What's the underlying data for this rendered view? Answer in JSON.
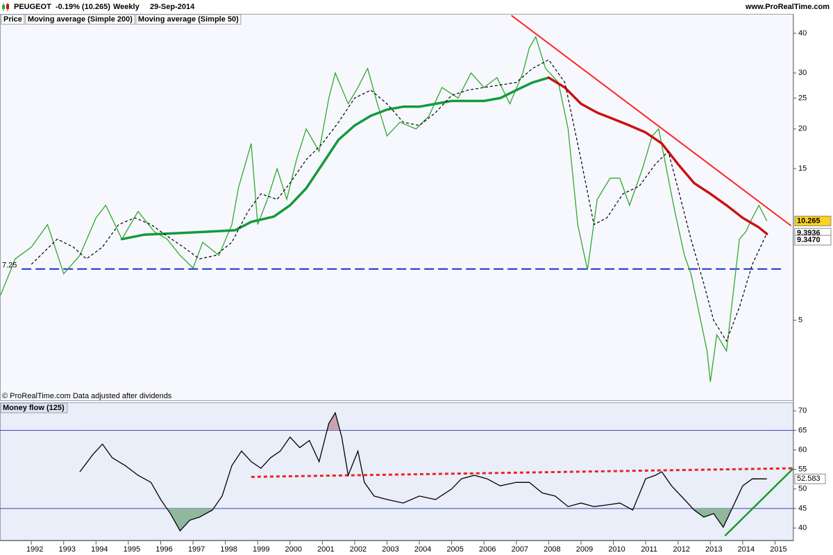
{
  "header": {
    "symbol": "PEUGEOT",
    "change": "-0.19% (10.265)",
    "period": "Weekly",
    "date": "29-Sep-2014",
    "site": "www.ProRealTime.com"
  },
  "chart_data": [
    {
      "type": "line",
      "log_scale": true,
      "xlim": [
        1991.03,
        2015.57
      ],
      "ylim": [
        2.8,
        45.8
      ],
      "yticks": [
        5,
        15,
        20,
        25,
        30,
        40
      ],
      "footnote": "© ProRealTime.com  Data adjusted after dividends",
      "series": [
        {
          "name": "Price",
          "color": "#2ea82e",
          "x": [
            1991.05,
            1991.5,
            1992.0,
            1992.5,
            1993.0,
            1993.5,
            1994.0,
            1994.3,
            1994.8,
            1995.3,
            1995.8,
            1996.2,
            1996.6,
            1997.0,
            1997.3,
            1997.8,
            1998.2,
            1998.4,
            1998.8,
            1999.0,
            1999.3,
            1999.6,
            1999.9,
            2000.2,
            2000.5,
            2000.9,
            2001.2,
            2001.4,
            2001.8,
            2002.1,
            2002.4,
            2002.7,
            2003.0,
            2003.4,
            2003.9,
            2004.3,
            2004.7,
            2005.2,
            2005.6,
            2006.0,
            2006.4,
            2006.8,
            2007.2,
            2007.4,
            2007.6,
            2007.9,
            2008.3,
            2008.6,
            2008.9,
            2009.2,
            2009.5,
            2009.9,
            2010.2,
            2010.5,
            2010.9,
            2011.2,
            2011.4,
            2011.7,
            2011.9,
            2012.2,
            2012.4,
            2012.7,
            2012.9,
            2013.0,
            2013.2,
            2013.5,
            2013.7,
            2013.9,
            2014.1,
            2014.3,
            2014.5,
            2014.75
          ],
          "values": [
            6.0,
            7.8,
            8.5,
            10,
            7.0,
            8.0,
            10.5,
            11.5,
            9.0,
            11,
            9.5,
            9,
            8,
            7.3,
            8.8,
            8.0,
            10,
            13,
            18,
            10,
            12,
            15,
            12,
            16,
            20,
            17,
            25,
            30,
            24,
            27,
            31,
            24,
            19,
            21,
            20,
            22,
            27,
            25,
            30,
            27,
            29,
            24,
            30,
            36,
            39,
            31,
            28,
            20,
            10,
            7.2,
            12,
            14,
            14,
            11.5,
            15,
            19,
            20,
            14,
            11,
            8,
            7,
            5,
            4,
            3.2,
            4.5,
            4.0,
            6,
            9,
            9.5,
            10.5,
            11.5,
            10.265
          ]
        },
        {
          "name": "Moving average (Simple 200)",
          "color": "#cc1111",
          "color_up": "#139a3c",
          "last_label": "9.3470",
          "x": [
            1994.8,
            1995.5,
            1996.5,
            1997.5,
            1998.3,
            1998.8,
            1999.5,
            2000.0,
            2000.5,
            2001.0,
            2001.5,
            2002.0,
            2002.5,
            2003.0,
            2003.5,
            2004.0,
            2004.5,
            2005.0,
            2005.5,
            2006.0,
            2006.5,
            2007.0,
            2007.5,
            2008.0,
            2008.5,
            2009.0,
            2009.5,
            2010.0,
            2010.5,
            2011.0,
            2011.5,
            2012.0,
            2012.5,
            2013.0,
            2013.5,
            2014.0,
            2014.5,
            2014.75
          ],
          "values": [
            9.0,
            9.3,
            9.4,
            9.5,
            9.6,
            10.2,
            10.6,
            11.5,
            13,
            15.5,
            18.5,
            20.5,
            22,
            23,
            23.5,
            23.5,
            24,
            24.5,
            24.5,
            24.5,
            25,
            26.5,
            28,
            29,
            27,
            24,
            22.5,
            21.5,
            20.5,
            19.5,
            18,
            15.5,
            13.5,
            12.5,
            11.5,
            10.5,
            9.8,
            9.347
          ]
        },
        {
          "name": "Moving average (Simple 50)",
          "color": "#000000",
          "dashed": true,
          "x": [
            1992.0,
            1992.8,
            1993.3,
            1993.7,
            1994.2,
            1994.7,
            1995.2,
            1995.7,
            1996.2,
            1996.7,
            1997.2,
            1997.7,
            1998.2,
            1998.7,
            1999.1,
            1999.6,
            2000.0,
            2000.5,
            2001.0,
            2001.5,
            2002.0,
            2002.5,
            2003.0,
            2003.5,
            2004.0,
            2004.5,
            2005.0,
            2005.5,
            2006.0,
            2006.5,
            2007.0,
            2007.5,
            2008.0,
            2008.5,
            2009.0,
            2009.4,
            2009.8,
            2010.3,
            2010.8,
            2011.3,
            2011.7,
            2012.0,
            2012.4,
            2012.8,
            2013.1,
            2013.5,
            2013.9,
            2014.3,
            2014.75
          ],
          "values": [
            7.5,
            9,
            8.5,
            7.8,
            8.5,
            10,
            10.5,
            10,
            9.2,
            8.5,
            7.8,
            8,
            8.8,
            11,
            12.5,
            12,
            13.5,
            16,
            18,
            21,
            25,
            26.5,
            24,
            21,
            20.5,
            22.5,
            25.5,
            26.5,
            27,
            27.5,
            28,
            31,
            33,
            28,
            16,
            10,
            10.5,
            12.5,
            13.2,
            15.5,
            17,
            13,
            9,
            6.5,
            5,
            4.3,
            5.5,
            7.5,
            9.3936
          ]
        }
      ],
      "trendline": {
        "color": "#ff2222",
        "x": [
          2006.85,
          2015.5
        ],
        "values": [
          45.5,
          9.91
        ]
      },
      "support": {
        "value": 7.25,
        "color": "#1a2ecc",
        "x": [
          1991.7,
          2015.3
        ]
      }
    },
    {
      "type": "line",
      "title": "Money flow (125)",
      "xlim": [
        1991.03,
        2015.57
      ],
      "ylim": [
        37,
        72
      ],
      "yticks": [
        40,
        45,
        50,
        55,
        60,
        65,
        70
      ],
      "xticks": [
        1992,
        1993,
        1994,
        1995,
        1996,
        1997,
        1998,
        1999,
        2000,
        2001,
        2002,
        2003,
        2004,
        2005,
        2006,
        2007,
        2008,
        2009,
        2010,
        2011,
        2012,
        2013,
        2014,
        2015
      ],
      "levels": [
        65,
        45
      ],
      "level_color": "#3344aa",
      "overbought_fill": "#c9a3b4",
      "oversold_fill": "#8fb89c",
      "series": [
        {
          "color": "#000000",
          "x": [
            1993.5,
            1993.9,
            1994.2,
            1994.5,
            1994.9,
            1995.3,
            1995.7,
            1996.0,
            1996.3,
            1996.6,
            1996.9,
            1997.2,
            1997.6,
            1997.9,
            1998.2,
            1998.5,
            1998.8,
            1999.1,
            1999.4,
            1999.7,
            2000.0,
            2000.3,
            2000.6,
            2000.9,
            2001.2,
            2001.4,
            2001.6,
            2001.8,
            2002.1,
            2002.3,
            2002.6,
            2003.0,
            2003.5,
            2004.0,
            2004.5,
            2005.0,
            2005.3,
            2005.7,
            2006.1,
            2006.5,
            2007.0,
            2007.4,
            2007.8,
            2008.2,
            2008.6,
            2009.0,
            2009.4,
            2009.8,
            2010.2,
            2010.6,
            2011.0,
            2011.3,
            2011.5,
            2011.8,
            2012.2,
            2012.5,
            2012.8,
            2013.1,
            2013.4,
            2013.7,
            2014.0,
            2014.3,
            2014.75
          ],
          "values": [
            54.4,
            58.8,
            61.5,
            58,
            56,
            53.5,
            51.7,
            47.3,
            43.7,
            39.3,
            42,
            42.8,
            44.6,
            48.2,
            56,
            59.7,
            57,
            55.3,
            58,
            59.7,
            63.3,
            60.6,
            62.4,
            57,
            66.8,
            69.5,
            63.3,
            53.5,
            59.7,
            51.7,
            48.2,
            47.3,
            46.4,
            48.2,
            47.3,
            50,
            52.6,
            53.5,
            52.6,
            50.8,
            51.7,
            51.7,
            49,
            48.2,
            45.5,
            46.4,
            45.5,
            45.9,
            46.4,
            44.6,
            52.6,
            53.5,
            54.4,
            50.8,
            47.3,
            44.6,
            42.8,
            43.7,
            40.2,
            45.5,
            50.8,
            52.6,
            52.583
          ]
        }
      ],
      "trendlines": [
        {
          "color": "#ee2222",
          "dotted": true,
          "x": [
            1998.8,
            2015.57
          ],
          "values": [
            53.1,
            55.3
          ]
        },
        {
          "color": "#1a9a2a",
          "x": [
            2013.45,
            2015.57
          ],
          "values": [
            38,
            55.3
          ]
        }
      ]
    }
  ]
}
